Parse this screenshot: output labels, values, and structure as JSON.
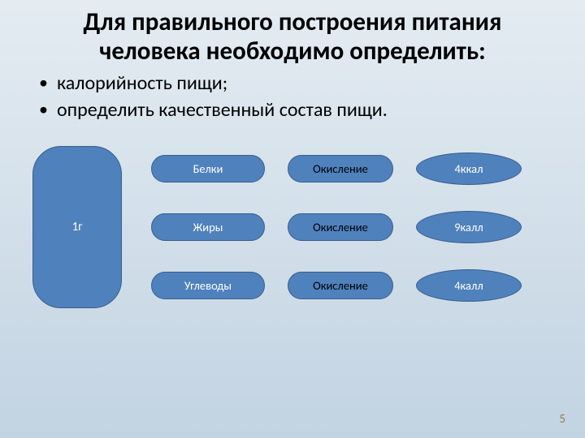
{
  "colors": {
    "bg_top": "#e4ecf2",
    "bg_bottom": "#c2d3e2",
    "shape_fill": "#4f81bd",
    "shape_border": "#3a5e8a",
    "text_dark": "#000000",
    "text_light": "#ffffff",
    "pagenum": "#9a7a56"
  },
  "title": "Для правильного построения питания человека необходимо определить:",
  "bullets": [
    "калорийность пищи;",
    "определить качественный состав пищи."
  ],
  "diagram": {
    "left_label": "1г",
    "rows": [
      {
        "nutrient": "Белки",
        "process": "Окисление",
        "energy": "4ккал"
      },
      {
        "nutrient": "Жиры",
        "process": "Окисление",
        "energy": "9калл"
      },
      {
        "nutrient": "Углеводы",
        "process": "Окисление",
        "energy": "4калл"
      }
    ]
  },
  "page_number": "5"
}
